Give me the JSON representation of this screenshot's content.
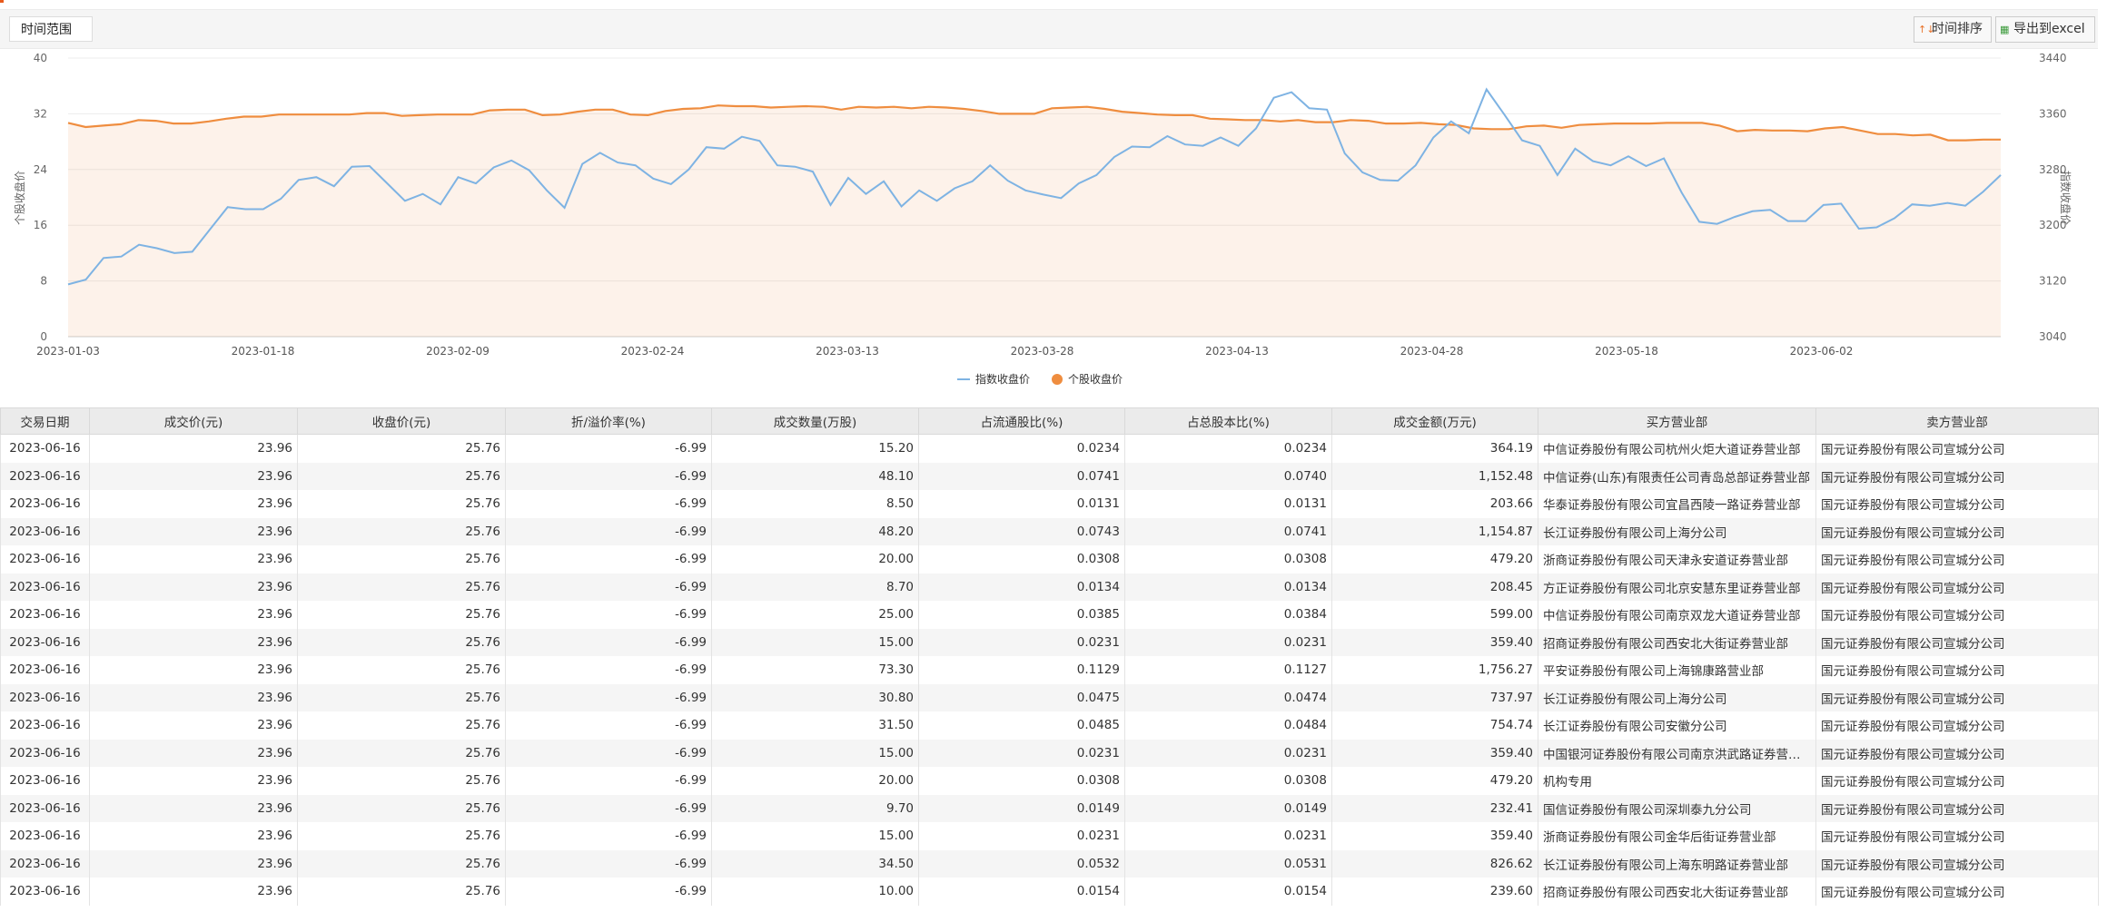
{
  "toolbar": {
    "range_label": "时间范围",
    "sort_label": "时间排序",
    "export_label": "导出到excel"
  },
  "chart_data": {
    "type": "line",
    "x_ticks": [
      "2023-01-03",
      "2023-01-18",
      "2023-02-09",
      "2023-02-24",
      "2023-03-13",
      "2023-03-28",
      "2023-04-13",
      "2023-04-28",
      "2023-05-18",
      "2023-06-02"
    ],
    "ylabel_left": "个股收盘价",
    "ylabel_right": "指数收盘价",
    "ylim_left": [
      0,
      40
    ],
    "yticks_left": [
      0,
      8,
      16,
      24,
      32,
      40
    ],
    "ylim_right": [
      3040,
      3440
    ],
    "yticks_right": [
      3040,
      3120,
      3200,
      3280,
      3360,
      3440
    ],
    "legend_position": "bottom",
    "series": [
      {
        "name": "指数收盘价",
        "axis": "left",
        "color": "#7eb3e3",
        "values": [
          7.5,
          8.2,
          11.3,
          11.5,
          13.2,
          12.7,
          12.0,
          12.2,
          15.4,
          18.6,
          18.3,
          18.3,
          19.8,
          22.5,
          22.9,
          21.6,
          24.4,
          24.5,
          22.0,
          19.5,
          20.5,
          19.0,
          22.9,
          22.0,
          24.3,
          25.3,
          23.9,
          21.0,
          18.5,
          24.8,
          26.4,
          25.0,
          24.6,
          22.7,
          21.9,
          24.0,
          27.2,
          27.0,
          28.7,
          28.1,
          24.6,
          24.4,
          23.7,
          18.9,
          22.8,
          20.5,
          22.3,
          18.7,
          21.0,
          19.5,
          21.3,
          22.3,
          24.6,
          22.4,
          21.0,
          20.4,
          19.9,
          22.0,
          23.2,
          25.8,
          27.3,
          27.2,
          28.8,
          27.6,
          27.4,
          28.6,
          27.4,
          29.9,
          34.3,
          35.1,
          32.8,
          32.6,
          26.3,
          23.6,
          22.5,
          22.4,
          24.6,
          28.6,
          30.9,
          29.2,
          35.5,
          31.9,
          28.2,
          27.4,
          23.2,
          27.0,
          25.2,
          24.6,
          25.9,
          24.5,
          25.6,
          20.7,
          16.5,
          16.2,
          17.2,
          18.0,
          18.2,
          16.6,
          16.6,
          18.9,
          19.1,
          15.5,
          15.7,
          17.0,
          19.0,
          18.8,
          19.2,
          18.8,
          20.8,
          23.2
        ]
      },
      {
        "name": "个股收盘价",
        "axis": "right",
        "color": "#ef8d3f",
        "values": [
          3347,
          3341,
          3343,
          3345,
          3351,
          3350,
          3346,
          3346,
          3349,
          3353,
          3356,
          3356,
          3359,
          3359,
          3359,
          3359,
          3359,
          3361,
          3361,
          3357,
          3358,
          3359,
          3359,
          3359,
          3365,
          3366,
          3366,
          3358,
          3359,
          3363,
          3366,
          3366,
          3359,
          3358,
          3364,
          3367,
          3368,
          3372,
          3371,
          3371,
          3369,
          3370,
          3371,
          3370,
          3366,
          3370,
          3369,
          3370,
          3368,
          3370,
          3369,
          3367,
          3364,
          3360,
          3360,
          3360,
          3368,
          3369,
          3370,
          3367,
          3363,
          3361,
          3359,
          3358,
          3358,
          3353,
          3352,
          3351,
          3351,
          3349,
          3351,
          3348,
          3348,
          3351,
          3350,
          3346,
          3346,
          3347,
          3345,
          3344,
          3339,
          3338,
          3338,
          3342,
          3343,
          3340,
          3344,
          3345,
          3346,
          3346,
          3346,
          3347,
          3347,
          3347,
          3343,
          3335,
          3337,
          3336,
          3336,
          3335,
          3339,
          3341,
          3336,
          3331,
          3331,
          3329,
          3330,
          3322,
          3322,
          3323,
          3323
        ]
      }
    ]
  },
  "table": {
    "columns": [
      "交易日期",
      "成交价(元)",
      "收盘价(元)",
      "折/溢价率(%)",
      "成交数量(万股)",
      "占流通股比(%)",
      "占总股本比(%)",
      "成交金额(万元)",
      "买方营业部",
      "卖方营业部"
    ],
    "rows": [
      [
        "2023-06-16",
        "23.96",
        "25.76",
        "-6.99",
        "15.20",
        "0.0234",
        "0.0234",
        "364.19",
        "中信证券股份有限公司杭州火炬大道证券营业部",
        "国元证券股份有限公司宣城分公司"
      ],
      [
        "2023-06-16",
        "23.96",
        "25.76",
        "-6.99",
        "48.10",
        "0.0741",
        "0.0740",
        "1,152.48",
        "中信证券(山东)有限责任公司青岛总部证券营业部",
        "国元证券股份有限公司宣城分公司"
      ],
      [
        "2023-06-16",
        "23.96",
        "25.76",
        "-6.99",
        "8.50",
        "0.0131",
        "0.0131",
        "203.66",
        "华泰证券股份有限公司宜昌西陵一路证券营业部",
        "国元证券股份有限公司宣城分公司"
      ],
      [
        "2023-06-16",
        "23.96",
        "25.76",
        "-6.99",
        "48.20",
        "0.0743",
        "0.0741",
        "1,154.87",
        "长江证券股份有限公司上海分公司",
        "国元证券股份有限公司宣城分公司"
      ],
      [
        "2023-06-16",
        "23.96",
        "25.76",
        "-6.99",
        "20.00",
        "0.0308",
        "0.0308",
        "479.20",
        "浙商证券股份有限公司天津永安道证券营业部",
        "国元证券股份有限公司宣城分公司"
      ],
      [
        "2023-06-16",
        "23.96",
        "25.76",
        "-6.99",
        "8.70",
        "0.0134",
        "0.0134",
        "208.45",
        "方正证券股份有限公司北京安慧东里证券营业部",
        "国元证券股份有限公司宣城分公司"
      ],
      [
        "2023-06-16",
        "23.96",
        "25.76",
        "-6.99",
        "25.00",
        "0.0385",
        "0.0384",
        "599.00",
        "中信证券股份有限公司南京双龙大道证券营业部",
        "国元证券股份有限公司宣城分公司"
      ],
      [
        "2023-06-16",
        "23.96",
        "25.76",
        "-6.99",
        "15.00",
        "0.0231",
        "0.0231",
        "359.40",
        "招商证券股份有限公司西安北大街证券营业部",
        "国元证券股份有限公司宣城分公司"
      ],
      [
        "2023-06-16",
        "23.96",
        "25.76",
        "-6.99",
        "73.30",
        "0.1129",
        "0.1127",
        "1,756.27",
        "平安证券股份有限公司上海锦康路营业部",
        "国元证券股份有限公司宣城分公司"
      ],
      [
        "2023-06-16",
        "23.96",
        "25.76",
        "-6.99",
        "30.80",
        "0.0475",
        "0.0474",
        "737.97",
        "长江证券股份有限公司上海分公司",
        "国元证券股份有限公司宣城分公司"
      ],
      [
        "2023-06-16",
        "23.96",
        "25.76",
        "-6.99",
        "31.50",
        "0.0485",
        "0.0484",
        "754.74",
        "长江证券股份有限公司安徽分公司",
        "国元证券股份有限公司宣城分公司"
      ],
      [
        "2023-06-16",
        "23.96",
        "25.76",
        "-6.99",
        "15.00",
        "0.0231",
        "0.0231",
        "359.40",
        "中国银河证券股份有限公司南京洪武路证券营业部",
        "国元证券股份有限公司宣城分公司"
      ],
      [
        "2023-06-16",
        "23.96",
        "25.76",
        "-6.99",
        "20.00",
        "0.0308",
        "0.0308",
        "479.20",
        "机构专用",
        "国元证券股份有限公司宣城分公司"
      ],
      [
        "2023-06-16",
        "23.96",
        "25.76",
        "-6.99",
        "9.70",
        "0.0149",
        "0.0149",
        "232.41",
        "国信证券股份有限公司深圳泰九分公司",
        "国元证券股份有限公司宣城分公司"
      ],
      [
        "2023-06-16",
        "23.96",
        "25.76",
        "-6.99",
        "15.00",
        "0.0231",
        "0.0231",
        "359.40",
        "浙商证券股份有限公司金华后街证券营业部",
        "国元证券股份有限公司宣城分公司"
      ],
      [
        "2023-06-16",
        "23.96",
        "25.76",
        "-6.99",
        "34.50",
        "0.0532",
        "0.0531",
        "826.62",
        "长江证券股份有限公司上海东明路证券营业部",
        "国元证券股份有限公司宣城分公司"
      ],
      [
        "2023-06-16",
        "23.96",
        "25.76",
        "-6.99",
        "10.00",
        "0.0154",
        "0.0154",
        "239.60",
        "招商证券股份有限公司西安北大街证券营业部",
        "国元证券股份有限公司宣城分公司"
      ]
    ]
  }
}
